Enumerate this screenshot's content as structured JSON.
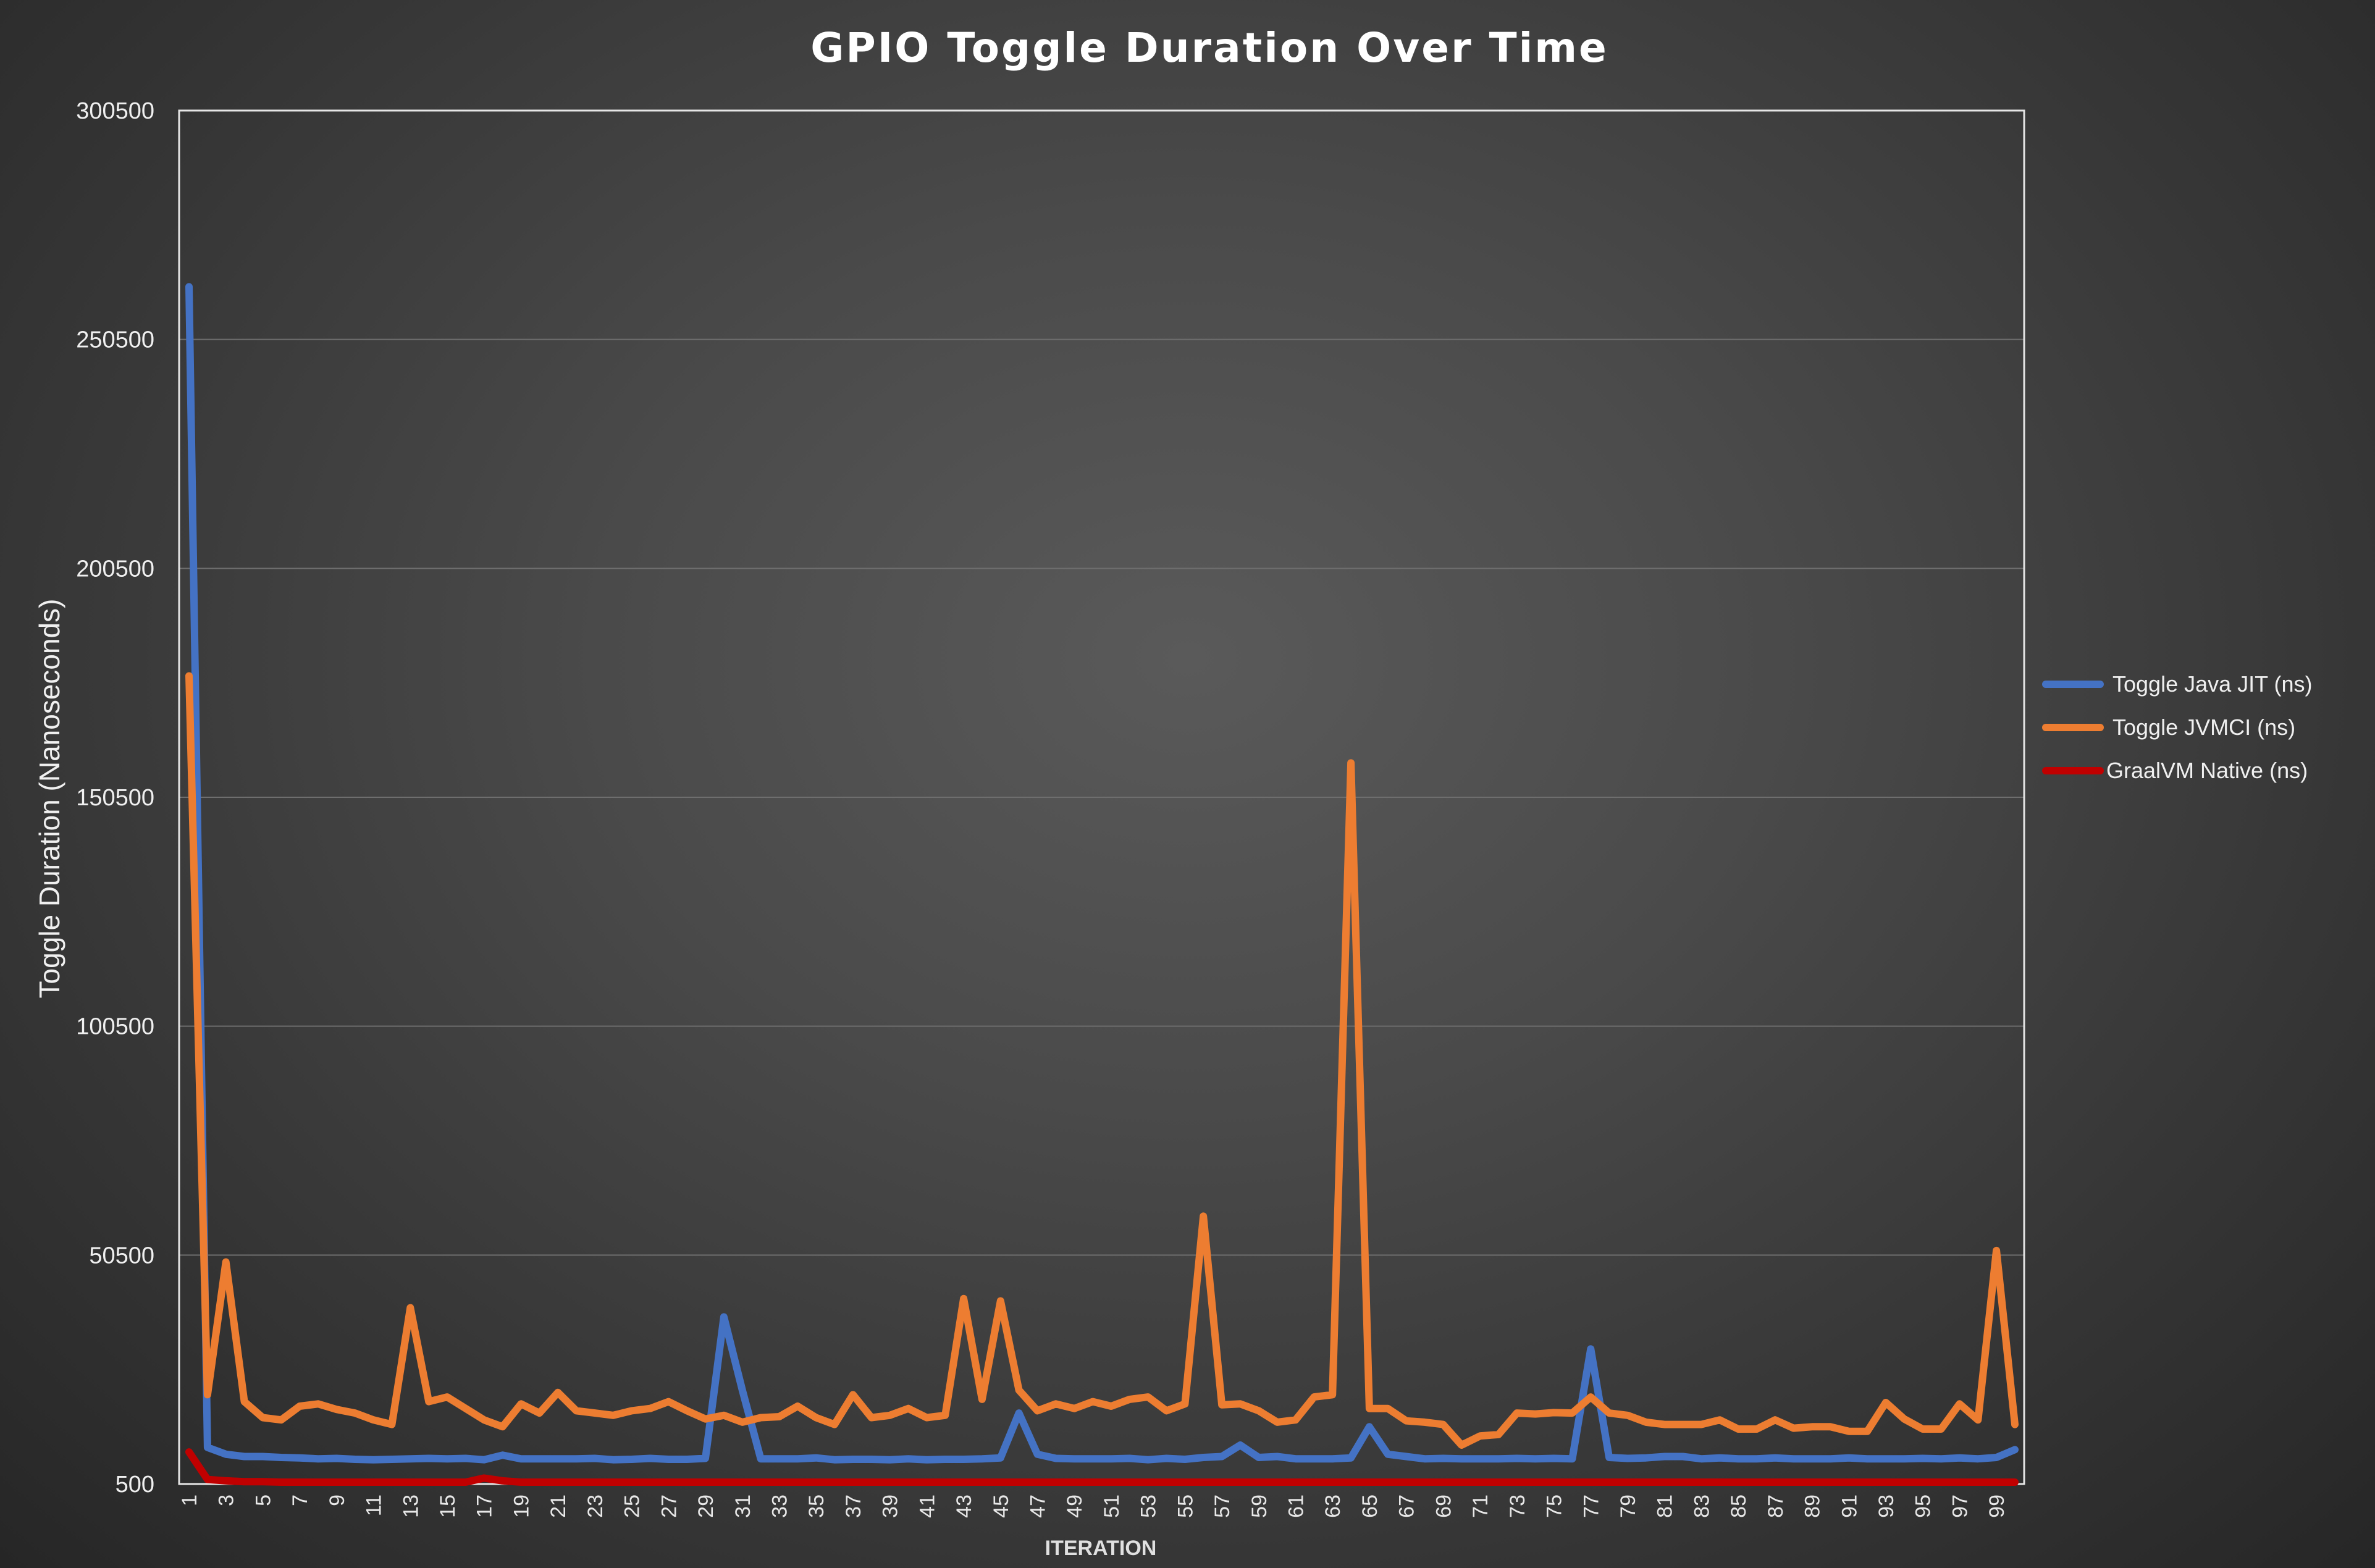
{
  "chart_data": {
    "type": "line",
    "title": "GPIO Toggle Duration Over Time",
    "xlabel": "ITERATION",
    "ylabel": "Toggle Duration (Nanoseconds)",
    "ylim": [
      500,
      300500
    ],
    "yticks": [
      500,
      50500,
      100500,
      150500,
      200500,
      250500,
      300500
    ],
    "grid": true,
    "legend_position": "right",
    "x": [
      1,
      2,
      3,
      4,
      5,
      6,
      7,
      8,
      9,
      10,
      11,
      12,
      13,
      14,
      15,
      16,
      17,
      18,
      19,
      20,
      21,
      22,
      23,
      24,
      25,
      26,
      27,
      28,
      29,
      30,
      31,
      32,
      33,
      34,
      35,
      36,
      37,
      38,
      39,
      40,
      41,
      42,
      43,
      44,
      45,
      46,
      47,
      48,
      49,
      50,
      51,
      52,
      53,
      54,
      55,
      56,
      57,
      58,
      59,
      60,
      61,
      62,
      63,
      64,
      65,
      66,
      67,
      68,
      69,
      70,
      71,
      72,
      73,
      74,
      75,
      76,
      77,
      78,
      79,
      80,
      81,
      82,
      83,
      84,
      85,
      86,
      87,
      88,
      89,
      90,
      91,
      92,
      93,
      94,
      95,
      96,
      97,
      98,
      99,
      100
    ],
    "xtick_labels": [
      "1",
      "3",
      "5",
      "7",
      "9",
      "11",
      "13",
      "15",
      "17",
      "19",
      "21",
      "23",
      "25",
      "27",
      "29",
      "31",
      "33",
      "35",
      "37",
      "39",
      "41",
      "43",
      "45",
      "47",
      "49",
      "51",
      "53",
      "55",
      "57",
      "59",
      "61",
      "63",
      "65",
      "67",
      "69",
      "71",
      "73",
      "75",
      "77",
      "79",
      "81",
      "83",
      "85",
      "87",
      "89",
      "91",
      "93",
      "95",
      "97",
      "99"
    ],
    "series": [
      {
        "name": "Toggle Java JIT (ns)",
        "color": "#4472c4",
        "values": [
          262000,
          8500,
          7000,
          6500,
          6500,
          6300,
          6200,
          6000,
          6100,
          5900,
          5800,
          5900,
          6000,
          6100,
          6000,
          6100,
          5800,
          6800,
          6000,
          6000,
          6000,
          6000,
          6100,
          5800,
          5900,
          6100,
          5900,
          5900,
          6100,
          37000,
          21000,
          6000,
          6000,
          6000,
          6200,
          5800,
          5900,
          5900,
          5800,
          6000,
          5800,
          5900,
          5900,
          6000,
          6200,
          16000,
          7000,
          6100,
          6000,
          6000,
          6000,
          6100,
          5800,
          6100,
          5900,
          6300,
          6500,
          9000,
          6300,
          6500,
          6000,
          6000,
          6000,
          6200,
          13000,
          7000,
          6500,
          6000,
          6100,
          6000,
          6000,
          6000,
          6100,
          6000,
          6100,
          6000,
          30000,
          6300,
          6100,
          6200,
          6500,
          6500,
          6000,
          6200,
          6000,
          6000,
          6200,
          6000,
          6000,
          6000,
          6200,
          6000,
          6000,
          6000,
          6100,
          6000,
          6200,
          6000,
          6300,
          8000
        ]
      },
      {
        "name": "Toggle JVMCI (ns)",
        "color": "#ed7d31",
        "values": [
          177000,
          20000,
          49000,
          18500,
          15000,
          14500,
          17500,
          18000,
          16800,
          16000,
          14500,
          13500,
          39000,
          18500,
          19500,
          17000,
          14500,
          13000,
          18000,
          16000,
          20500,
          16500,
          16000,
          15500,
          16500,
          17000,
          18500,
          16500,
          14700,
          15500,
          14000,
          15000,
          15200,
          17500,
          15000,
          13500,
          20000,
          15000,
          15500,
          17000,
          15000,
          15500,
          41000,
          19000,
          40500,
          21000,
          16500,
          18000,
          17000,
          18500,
          17500,
          19000,
          19500,
          16500,
          18000,
          59000,
          17800,
          18000,
          16500,
          14000,
          14500,
          19500,
          20000,
          158000,
          17000,
          17000,
          14300,
          14000,
          13500,
          9000,
          11000,
          11300,
          16000,
          15800,
          16100,
          16000,
          19500,
          16000,
          15500,
          14000,
          13500,
          13500,
          13500,
          14500,
          12500,
          12500,
          14500,
          12700,
          13000,
          13000,
          12000,
          12000,
          18300,
          14700,
          12500,
          12500,
          18000,
          14500,
          51500,
          13500
        ]
      },
      {
        "name": "GraalVM Native (ns)",
        "color": "#c00000",
        "values": [
          7500,
          1500,
          1200,
          1000,
          1000,
          900,
          900,
          900,
          900,
          900,
          900,
          900,
          900,
          900,
          900,
          900,
          1800,
          1200,
          900,
          900,
          900,
          900,
          900,
          900,
          900,
          900,
          900,
          900,
          900,
          900,
          900,
          900,
          900,
          900,
          900,
          900,
          900,
          900,
          900,
          900,
          900,
          900,
          900,
          900,
          900,
          900,
          900,
          900,
          900,
          900,
          900,
          900,
          900,
          900,
          900,
          900,
          900,
          900,
          900,
          900,
          900,
          900,
          900,
          900,
          900,
          900,
          900,
          900,
          900,
          900,
          900,
          900,
          900,
          900,
          900,
          900,
          900,
          900,
          900,
          900,
          900,
          900,
          900,
          900,
          900,
          900,
          900,
          900,
          900,
          900,
          900,
          900,
          900,
          900,
          900,
          900,
          900,
          900,
          900,
          900
        ]
      }
    ]
  }
}
